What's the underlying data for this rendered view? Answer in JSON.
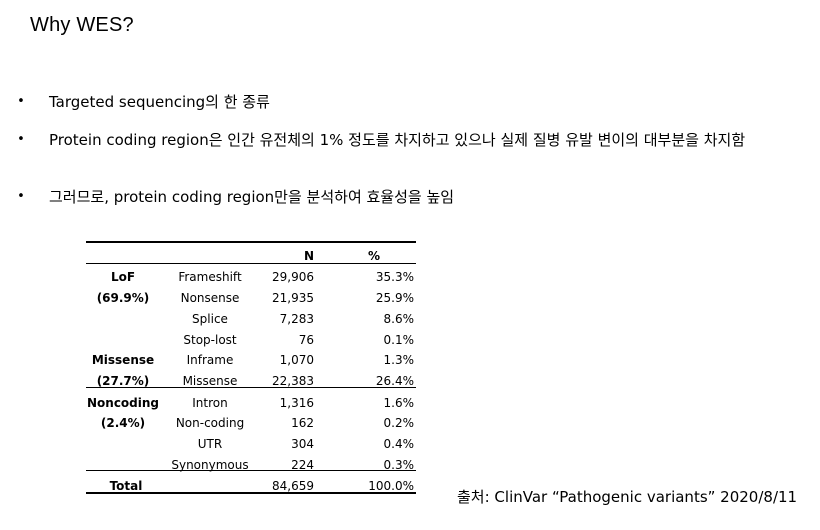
{
  "slide": {
    "title": "Why WES?",
    "bullets": [
      {
        "marker": "•",
        "text": "Targeted sequencing의 한 종류"
      },
      {
        "marker": "•",
        "text": "Protein coding region은 인간 유전체의 1% 정도를 차지하고 있으나 실제 질병 유발 변이의 대부분을 차지함"
      },
      {
        "marker": "•",
        "text": "그러므로, protein coding region만을 분석하여 효율성을 높임"
      }
    ]
  },
  "table": {
    "headers": {
      "n": "N",
      "pct": "%"
    },
    "groups": [
      {
        "name": "LoF",
        "share": "(69.9%)"
      },
      {
        "name": "Missense",
        "share": "(27.7%)"
      },
      {
        "name": "Noncoding",
        "share": "(2.4%)"
      }
    ],
    "rows": [
      {
        "sub": "Frameshift",
        "n": "29,906",
        "pct": "35.3%"
      },
      {
        "sub": "Nonsense",
        "n": "21,935",
        "pct": "25.9%"
      },
      {
        "sub": "Splice",
        "n": "7,283",
        "pct": "8.6%"
      },
      {
        "sub": "Stop-lost",
        "n": "76",
        "pct": "0.1%"
      },
      {
        "sub": "Inframe",
        "n": "1,070",
        "pct": "1.3%"
      },
      {
        "sub": "Missense",
        "n": "22,383",
        "pct": "26.4%"
      },
      {
        "sub": "Intron",
        "n": "1,316",
        "pct": "1.6%"
      },
      {
        "sub": "Non-coding",
        "n": "162",
        "pct": "0.2%"
      },
      {
        "sub": "UTR",
        "n": "304",
        "pct": "0.4%"
      },
      {
        "sub": "Synonymous",
        "n": "224",
        "pct": "0.3%"
      }
    ],
    "total": {
      "label": "Total",
      "n": "84,659",
      "pct": "100.0%"
    }
  },
  "source": "출처: ClinVar “Pathogenic variants” 2020/8/11"
}
